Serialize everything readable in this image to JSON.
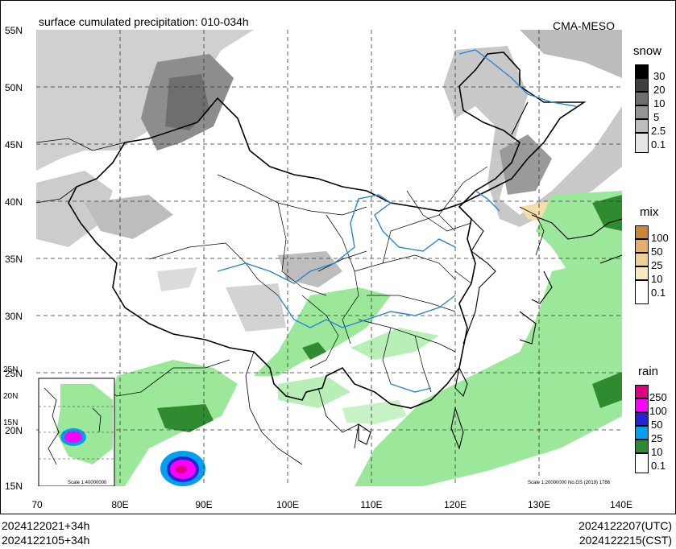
{
  "header": {
    "title": "surface cumulated precipitation: 010-034h",
    "source": "CMA-MESO"
  },
  "axes": {
    "lat_labels": [
      "55N",
      "50N",
      "45N",
      "40N",
      "35N",
      "30N",
      "25N",
      "20N",
      "15N"
    ],
    "lon_labels": [
      "70",
      "80E",
      "90E",
      "100E",
      "110E",
      "120E",
      "130E",
      "140E"
    ]
  },
  "inset": {
    "lat_labels": [
      "25N",
      "20N",
      "15N"
    ],
    "scale_text": "Scale 1:40000000"
  },
  "map_note": "Scale 1:20000000 No.GS (2019) 1786",
  "legends": {
    "snow": {
      "title": "snow",
      "levels": [
        "30",
        "20",
        "10",
        "5",
        "2.5",
        "0.1"
      ],
      "colors": [
        "#000000",
        "#3f3f3f",
        "#6e6e6e",
        "#959595",
        "#bdbdbd",
        "#e6e6e6"
      ]
    },
    "mix": {
      "title": "mix",
      "levels": [
        "100",
        "50",
        "25",
        "10",
        "0.1"
      ],
      "colors": [
        "#c98839",
        "#e3b06c",
        "#f0d08f",
        "#f8e8bd",
        "#ffffff"
      ]
    },
    "rain": {
      "title": "rain",
      "levels": [
        "250",
        "100",
        "50",
        "25",
        "10",
        "0.1"
      ],
      "colors": [
        "#e0007f",
        "#ff00ff",
        "#2424d6",
        "#00a0ee",
        "#2f8b2f",
        "#9be89b"
      ]
    }
  },
  "footer": {
    "left_line1": "2024122021+34h",
    "left_line2": "2024122105+34h",
    "right_line1": "2024122207(UTC)",
    "right_line2": "2024122215(CST)"
  }
}
